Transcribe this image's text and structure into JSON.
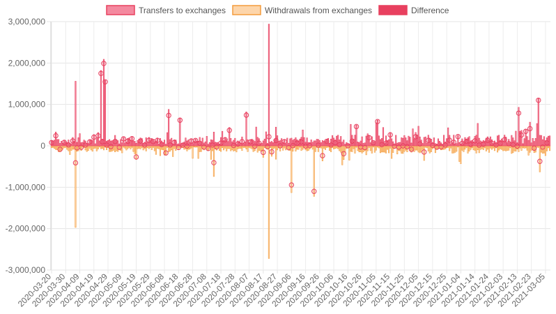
{
  "chart_data": {
    "type": "bar",
    "legend_position": "top",
    "grid": true,
    "ylim": [
      -3000000,
      3000000
    ],
    "yticks": [
      "3,000,000",
      "2,000,000",
      "1,000,000",
      "0",
      "-1,000,000",
      "-2,000,000",
      "-3,000,000"
    ],
    "xticks": [
      "2020-03-20",
      "2020-03-30",
      "2020-04-09",
      "2020-04-19",
      "2020-04-29",
      "2020-05-09",
      "2020-05-19",
      "2020-05-29",
      "2020-06-08",
      "2020-06-18",
      "2020-06-28",
      "2020-07-08",
      "2020-07-18",
      "2020-07-28",
      "2020-08-07",
      "2020-08-17",
      "2020-08-27",
      "2020-09-06",
      "2020-09-16",
      "2020-09-26",
      "2020-10-06",
      "2020-10-16",
      "2020-10-26",
      "2020-11-05",
      "2020-11-15",
      "2020-11-25",
      "2020-12-05",
      "2020-12-15",
      "2020-12-25",
      "2021-01-04",
      "2021-01-14",
      "2021-01-24",
      "2021-02-03",
      "2021-02-13",
      "2021-02-23",
      "2021-03-05"
    ],
    "date_range": [
      "2020-03-20",
      "2021-03-08"
    ],
    "series": [
      {
        "name": "Transfers to exchanges",
        "color": "#f4899f",
        "border": "#e8405f"
      },
      {
        "name": "Withdrawals from exchanges",
        "color": "#fdd5aa",
        "border": "#f39c3c"
      },
      {
        "name": "Difference",
        "color": "#e8405f",
        "border": "#e8405f",
        "marker": "circle"
      }
    ],
    "notable_points": [
      {
        "x": "2020-04-06",
        "transfers": 1560000,
        "withdrawals": -1970000
      },
      {
        "x": "2020-04-24",
        "transfers": 1820000
      },
      {
        "x": "2020-04-26",
        "transfers": 2090000
      },
      {
        "x": "2020-04-27",
        "transfers": 1580000
      },
      {
        "x": "2020-06-11",
        "transfers": 880000
      },
      {
        "x": "2020-06-19",
        "transfers": 660000
      },
      {
        "x": "2020-07-13",
        "withdrawals": -740000
      },
      {
        "x": "2020-08-05",
        "transfers": 820000
      },
      {
        "x": "2020-08-21",
        "transfers": 2940000,
        "withdrawals": -2720000
      },
      {
        "x": "2020-09-06",
        "withdrawals": -1130000
      },
      {
        "x": "2020-09-22",
        "withdrawals": -1220000
      },
      {
        "x": "2020-11-06",
        "transfers": 620000
      },
      {
        "x": "2021-02-14",
        "transfers": 930000
      },
      {
        "x": "2021-02-28",
        "transfers": 1140000
      },
      {
        "x": "2021-03-01",
        "withdrawals": -630000
      }
    ]
  }
}
